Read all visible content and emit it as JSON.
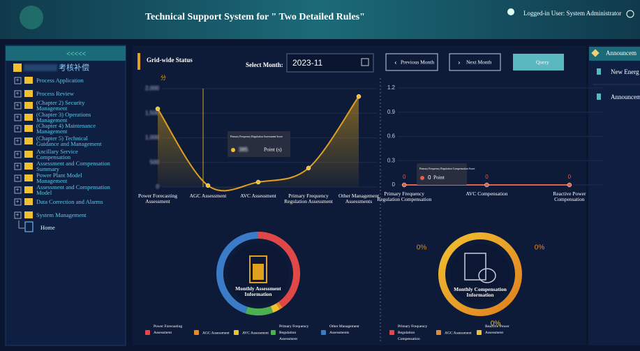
{
  "header": {
    "title": "Technical Support System for \" Two Detailed Rules\"",
    "user": "Logged-in User: System Administrator"
  },
  "sidebar": {
    "title": "考核补偿",
    "items": [
      "Process Application",
      "Process Review",
      "(Chapter 2) Security Management",
      "(Chapter 3) Operations Management",
      "(Chapter 4) Maintenance Management",
      "(Chapter 5) Technical Guidance and Management",
      "Ancillary Service Compensation",
      "Assessment and Compensation Summary",
      "Power Plant Model Management",
      "Assessment and Compensation Model",
      "Data Correction and Alarms",
      "System Management"
    ],
    "child": "Home"
  },
  "toolbar": {
    "section": "Grid-wide Status",
    "month_label": "Select Month:",
    "month": "2023-11",
    "buttons": [
      "Previous Month",
      "Next Month",
      "Query"
    ]
  },
  "announcements": {
    "title": "Announcem",
    "items": [
      "New Energ",
      "Announcem"
    ]
  },
  "chart_data": [
    {
      "type": "line",
      "area": true,
      "unit": "分",
      "categories": [
        "Power Forecasting Assessment",
        "AGC Assessment",
        "AVC Assessment",
        "Primary Frequency Regulation Assessment",
        "Other Management Assessments"
      ],
      "values": [
        1590,
        30,
        100,
        385,
        1840
      ],
      "color": "#e0a020",
      "ylim": [
        0,
        2000
      ],
      "yticks": [
        0,
        500,
        {
          "value": 1000,
          "label": "1,000"
        },
        {
          "value": 1500,
          "label": "1,500"
        },
        {
          "value": 2000,
          "label": "2,000"
        }
      ],
      "grid": true,
      "tooltip": {
        "title": "Primary Frequency Regulation Assessment Score",
        "unit": "Point (s)"
      }
    },
    {
      "type": "line",
      "categories": [
        "Primary Frequency Regulation Compensation",
        "AVC Compensation",
        "Reactive Power Compensation"
      ],
      "values": [
        0,
        0,
        0
      ],
      "color": "#e0604a",
      "ylim": [
        0,
        1.2
      ],
      "yticks": [
        0,
        0.3,
        0.6,
        0.9,
        1.2
      ],
      "grid": true,
      "tooltip": {
        "title": "Primary Frequency Regulation Compensation Score",
        "unit": "Point"
      }
    },
    {
      "type": "pie",
      "title": "Monthly Assessment Information",
      "categories": [
        "Power Forecasting Assessment",
        "AGC Assessment",
        "AVC Assessment",
        "Primary Frequency Regulation Assessment",
        "Other Management Assessments"
      ],
      "values": [
        40.12,
        1.26,
        2.85,
        10.73,
        45.04
      ],
      "colors": [
        "#e04848",
        "#e8892a",
        "#f0c030",
        "#4caf50",
        "#3a7cc8"
      ]
    },
    {
      "type": "pie",
      "title": "Monthly Compensation Information",
      "categories": [
        "Primary Frequency Regulation Compensation",
        "AGC Assessment",
        "Reactive Power Assessment"
      ],
      "values": [
        0,
        0,
        0
      ],
      "value_labels": [
        "0%",
        "0%",
        "0%"
      ],
      "colors": [
        "#e04848",
        "#e8892a",
        "#f0c030"
      ]
    }
  ]
}
